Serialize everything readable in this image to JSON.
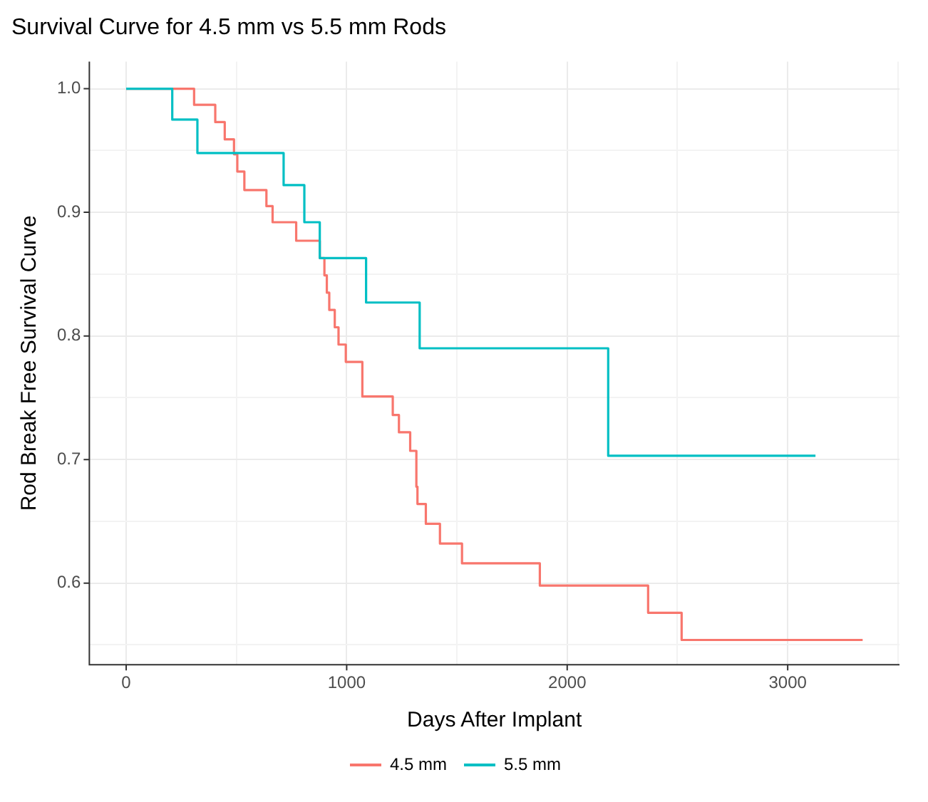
{
  "chart_data": {
    "type": "step",
    "title": "Survival Curve for 4.5 mm vs 5.5 mm Rods",
    "xlabel": "Days After Implant",
    "ylabel": "Rod Break Free Survival Curve",
    "xlim": [
      -167,
      3507
    ],
    "xticks": [
      0,
      {
        "value": 500,
        "label": null
      },
      1000,
      {
        "value": 1500,
        "label": null
      },
      2000,
      {
        "value": 2500,
        "label": null
      },
      3000,
      {
        "value": 3500,
        "label": null
      }
    ],
    "ylim": [
      0.534,
      1.022
    ],
    "yticks": [
      {
        "value": 0.55,
        "label": null
      },
      0.6,
      {
        "value": 0.65,
        "label": null
      },
      0.7,
      {
        "value": 0.75,
        "label": null
      },
      0.8,
      {
        "value": 0.85,
        "label": null
      },
      0.9,
      {
        "value": 0.95,
        "label": null
      },
      {
        "value": 1,
        "label": "1.0"
      }
    ],
    "grid": true,
    "legend": "bottom",
    "marker": "none",
    "line_style": "solid",
    "series": [
      {
        "name": "4.5 mm",
        "color": "#f8766d",
        "x": [
          0,
          308,
          404,
          447,
          489,
          504,
          536,
          636,
          664,
          771,
          878,
          899,
          910,
          921,
          946,
          963,
          996,
          1071,
          1209,
          1237,
          1288,
          1316,
          1321,
          1359,
          1423,
          1523,
          1876,
          2367,
          2519,
          3340
        ],
        "values": [
          1.0,
          0.987,
          0.973,
          0.959,
          0.947,
          0.933,
          0.918,
          0.905,
          0.892,
          0.877,
          0.863,
          0.849,
          0.835,
          0.821,
          0.807,
          0.793,
          0.779,
          0.751,
          0.736,
          0.722,
          0.707,
          0.678,
          0.664,
          0.648,
          0.632,
          0.616,
          0.598,
          0.576,
          0.554,
          0.554
        ]
      },
      {
        "name": "5.5 mm",
        "color": "#00bfc4",
        "x": [
          0,
          209,
          323,
          714,
          808,
          878,
          1088,
          1331,
          2186,
          3126
        ],
        "values": [
          1.0,
          0.975,
          0.948,
          0.922,
          0.892,
          0.863,
          0.827,
          0.79,
          0.703,
          0.703
        ]
      }
    ]
  }
}
